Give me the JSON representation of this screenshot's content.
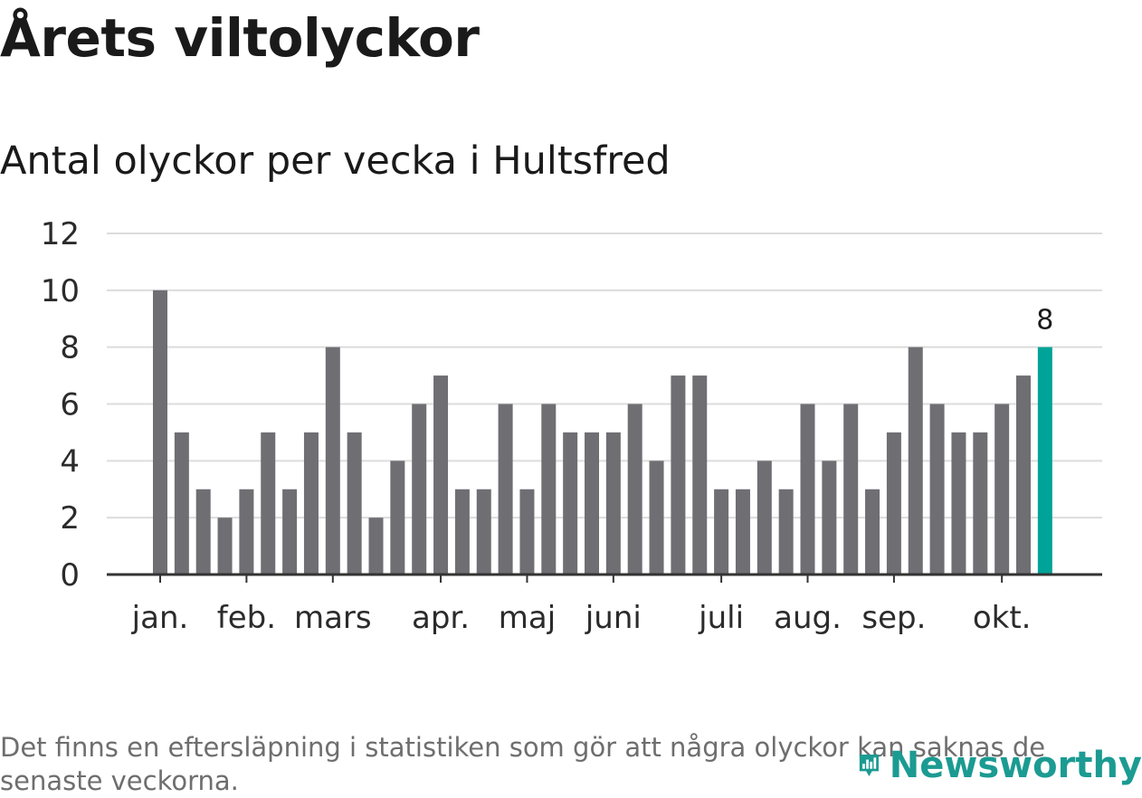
{
  "title": "Årets viltolyckor",
  "subtitle": "Antal olyckor per vecka i Hultsfred",
  "footnote": "Det finns en eftersläpning i statistiken som gör att några olyckor kan saknas de senaste veckorna.",
  "logo_text": "Newsworthy",
  "colors": {
    "bar": "#6f6e73",
    "highlight": "#00a398",
    "grid": "#dcdcdc",
    "axis": "#333333",
    "logo": "#1b9b92"
  },
  "chart_data": {
    "type": "bar",
    "title": "Antal olyckor per vecka i Hultsfred",
    "xlabel": "",
    "ylabel": "",
    "ylim": [
      0,
      12
    ],
    "yticks": [
      "0",
      "2",
      "4",
      "6",
      "8",
      "10",
      "12"
    ],
    "grid": true,
    "values": [
      10,
      5,
      3,
      2,
      3,
      5,
      3,
      5,
      8,
      5,
      2,
      4,
      6,
      7,
      3,
      3,
      6,
      3,
      6,
      5,
      5,
      5,
      6,
      4,
      7,
      7,
      3,
      3,
      4,
      3,
      6,
      4,
      6,
      3,
      5,
      8,
      6,
      5,
      5,
      6,
      7,
      8
    ],
    "highlight_index": 41,
    "highlight_label": "8",
    "month_labels": [
      {
        "label": "jan.",
        "bar_index": 0
      },
      {
        "label": "feb.",
        "bar_index": 4
      },
      {
        "label": "mars",
        "bar_index": 8
      },
      {
        "label": "apr.",
        "bar_index": 13
      },
      {
        "label": "maj",
        "bar_index": 17
      },
      {
        "label": "juni",
        "bar_index": 21
      },
      {
        "label": "juli",
        "bar_index": 26
      },
      {
        "label": "aug.",
        "bar_index": 30
      },
      {
        "label": "sep.",
        "bar_index": 34
      },
      {
        "label": "okt.",
        "bar_index": 39
      }
    ]
  }
}
